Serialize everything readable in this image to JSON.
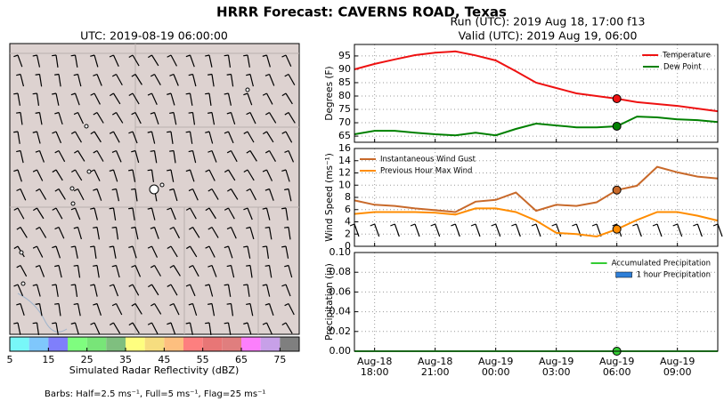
{
  "title": "HRRR Forecast: CAVERNS ROAD, Texas",
  "note": "Barbs: Half=2.5 ms⁻¹, Full=5 ms⁻¹, Flag=25 ms⁻¹",
  "chart_data": [
    {
      "type": "map",
      "title": "UTC: 2019-08-19 06:00:00"
    },
    {
      "type": "colorbar",
      "xlabel": "Simulated Radar Reflectivity (dBZ)",
      "colors": [
        "#78f7f8",
        "#7fc7fc",
        "#7f7ffb",
        "#7ffd7f",
        "#78e578",
        "#7fbf7f",
        "#fefe7f",
        "#f6dd7f",
        "#fdbf7f",
        "#fd7f7f",
        "#e87676",
        "#e07e7e",
        "#fc7ffc",
        "#c7a0e8",
        "#7f7f7f"
      ],
      "xlim": [
        5,
        80
      ],
      "xticks": [
        5,
        15,
        25,
        35,
        45,
        55,
        65,
        75
      ]
    },
    {
      "type": "line",
      "title": "Run (UTC): 2019 Aug 18, 17:00 f13",
      "subtitle": "Valid (UTC): 2019 Aug 19, 06:00",
      "ylabel": "Degrees (F)",
      "x": [
        17,
        18,
        19,
        20,
        21,
        22,
        23,
        24,
        25,
        26,
        27,
        28,
        29,
        30,
        31,
        32,
        33,
        34,
        35
      ],
      "xlim": [
        17,
        35
      ],
      "xticks": [
        18,
        21,
        24,
        27,
        30,
        33
      ],
      "ylim": [
        62.7,
        99.3
      ],
      "yticks": [
        65,
        70,
        75,
        80,
        85,
        90,
        95
      ],
      "grid": true,
      "legend": "upper right",
      "marker_x": 30,
      "series": [
        {
          "name": "Temperature",
          "color": "#ee1111",
          "values": [
            90,
            92,
            93.7,
            95.3,
            96.2,
            96.7,
            95.2,
            93.3,
            89.3,
            85,
            83,
            81,
            80,
            79,
            77.7,
            77,
            76.3,
            75.3,
            74.3
          ]
        },
        {
          "name": "Dew Point",
          "color": "#008000",
          "values": [
            65.7,
            67,
            67,
            66.3,
            65.7,
            65.3,
            66.3,
            65.3,
            67.7,
            69.7,
            69,
            68.3,
            68.3,
            68.7,
            72.3,
            72,
            71.3,
            71,
            70.3
          ]
        }
      ]
    },
    {
      "type": "line",
      "ylabel": "Wind Speed (ms⁻¹)",
      "x": [
        17,
        18,
        19,
        20,
        21,
        22,
        23,
        24,
        25,
        26,
        27,
        28,
        29,
        30,
        31,
        32,
        33,
        34,
        35
      ],
      "xlim": [
        17,
        35
      ],
      "xticks": [
        18,
        21,
        24,
        27,
        30,
        33
      ],
      "ylim": [
        0,
        16
      ],
      "yticks": [
        0,
        2,
        4,
        6,
        8,
        10,
        12,
        14,
        16
      ],
      "grid": true,
      "legend": "upper left",
      "marker_x": 30,
      "series": [
        {
          "name": "Instantaneous Wind Gust",
          "color": "#c8692a",
          "values": [
            7.5,
            6.8,
            6.6,
            6.2,
            5.9,
            5.6,
            7.3,
            7.6,
            8.8,
            5.8,
            6.8,
            6.6,
            7.2,
            9.2,
            9.9,
            13,
            12.1,
            11.4,
            11.1
          ]
        },
        {
          "name": "Previous Hour Max Wind",
          "color": "#ff8c00",
          "values": [
            5.3,
            5.6,
            5.6,
            5.6,
            5.5,
            5.2,
            6.2,
            6.2,
            5.6,
            4.2,
            2.2,
            2.0,
            1.6,
            2.8,
            4.3,
            5.6,
            5.6,
            5.0,
            4.2
          ]
        }
      ]
    },
    {
      "type": "line",
      "ylabel": "Precipitation (in)",
      "x": [
        17,
        18,
        19,
        20,
        21,
        22,
        23,
        24,
        25,
        26,
        27,
        28,
        29,
        30,
        31,
        32,
        33,
        34,
        35
      ],
      "xlim": [
        17,
        35
      ],
      "xticks": [
        {
          "value": 18,
          "label": "Aug-18 18:00"
        },
        {
          "value": 21,
          "label": "Aug-18 21:00"
        },
        {
          "value": 24,
          "label": "Aug-19 00:00"
        },
        {
          "value": 27,
          "label": "Aug-19 03:00"
        },
        {
          "value": 30,
          "label": "Aug-19 06:00"
        },
        {
          "value": 33,
          "label": "Aug-19 09:00"
        }
      ],
      "ylim": [
        0,
        0.1
      ],
      "yticks": [
        {
          "value": 0,
          "label": "0.00"
        },
        {
          "value": 0.02,
          "label": "0.02"
        },
        {
          "value": 0.04,
          "label": "0.04"
        },
        {
          "value": 0.06,
          "label": "0.06"
        },
        {
          "value": 0.08,
          "label": "0.08"
        },
        {
          "value": 0.1,
          "label": "0.10"
        }
      ],
      "grid": true,
      "legend": "upper right",
      "marker_x": 30,
      "series": [
        {
          "name": "Accumulated Precipitation",
          "color": "#33cc33",
          "values": [
            0,
            0,
            0,
            0,
            0,
            0,
            0,
            0,
            0,
            0,
            0,
            0,
            0,
            0,
            0,
            0,
            0,
            0,
            0
          ]
        },
        {
          "name": "1 hour Precipitation",
          "type": "bar",
          "color": "#2e7fd8",
          "values": [
            0,
            0,
            0,
            0,
            0,
            0,
            0,
            0,
            0,
            0,
            0,
            0,
            0,
            0,
            0,
            0,
            0,
            0,
            0
          ]
        }
      ]
    }
  ]
}
